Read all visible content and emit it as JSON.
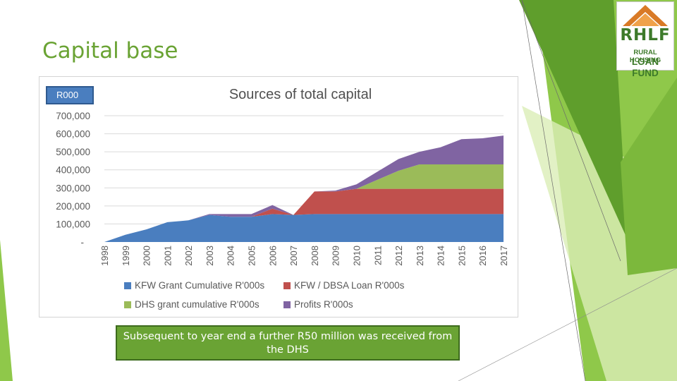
{
  "slide": {
    "title": "Capital base"
  },
  "logo": {
    "main": "RHLF",
    "line1": "RURAL HOUSING",
    "line2": "LOAN FUND"
  },
  "note": {
    "text": "Subsequent to year end a further R50 million was received from the DHS"
  },
  "colors": {
    "accent": "#6aa334",
    "kfw_grant": "#4a7ebf",
    "kfw_dbsa_loan": "#c0504d",
    "dhs_grant": "#9bbb59",
    "profits": "#8064a2"
  },
  "chart_data": {
    "type": "area",
    "stacked": true,
    "title": "Sources of total capital",
    "unit_label": "R000",
    "categories": [
      "1998",
      "1999",
      "2000",
      "2001",
      "2002",
      "2003",
      "2004",
      "2005",
      "2006",
      "2007",
      "2008",
      "2009",
      "2010",
      "2011",
      "2012",
      "2013",
      "2014",
      "2015",
      "2016",
      "2017"
    ],
    "ylim": [
      0,
      700000
    ],
    "yticks": [
      0,
      100000,
      200000,
      300000,
      400000,
      500000,
      600000,
      700000
    ],
    "ytick_labels": [
      "-",
      "100,000",
      "200,000",
      "300,000",
      "400,000",
      "500,000",
      "600,000",
      "700,000"
    ],
    "grid": true,
    "legend_position": "bottom",
    "series": [
      {
        "name": "KFW Grant Cumulative R'000s",
        "color": "#4a7ebf",
        "values": [
          0,
          40000,
          70000,
          110000,
          120000,
          150000,
          140000,
          140000,
          155000,
          150000,
          155000,
          155000,
          155000,
          155000,
          155000,
          155000,
          155000,
          155000,
          155000,
          155000
        ]
      },
      {
        "name": "KFW / DBSA Loan R'000s",
        "color": "#c0504d",
        "values": [
          0,
          0,
          0,
          0,
          0,
          0,
          0,
          0,
          30000,
          0,
          125000,
          125000,
          140000,
          140000,
          140000,
          140000,
          140000,
          140000,
          140000,
          140000
        ]
      },
      {
        "name": "DHS grant cumulative R'000s",
        "color": "#9bbb59",
        "values": [
          0,
          0,
          0,
          0,
          0,
          0,
          0,
          0,
          0,
          0,
          0,
          0,
          0,
          50000,
          100000,
          135000,
          135000,
          135000,
          135000,
          135000
        ]
      },
      {
        "name": "Profits R'000s",
        "color": "#8064a2",
        "values": [
          0,
          0,
          0,
          0,
          0,
          5000,
          15000,
          15000,
          20000,
          0,
          0,
          5000,
          25000,
          45000,
          65000,
          70000,
          95000,
          140000,
          145000,
          160000
        ]
      }
    ]
  }
}
